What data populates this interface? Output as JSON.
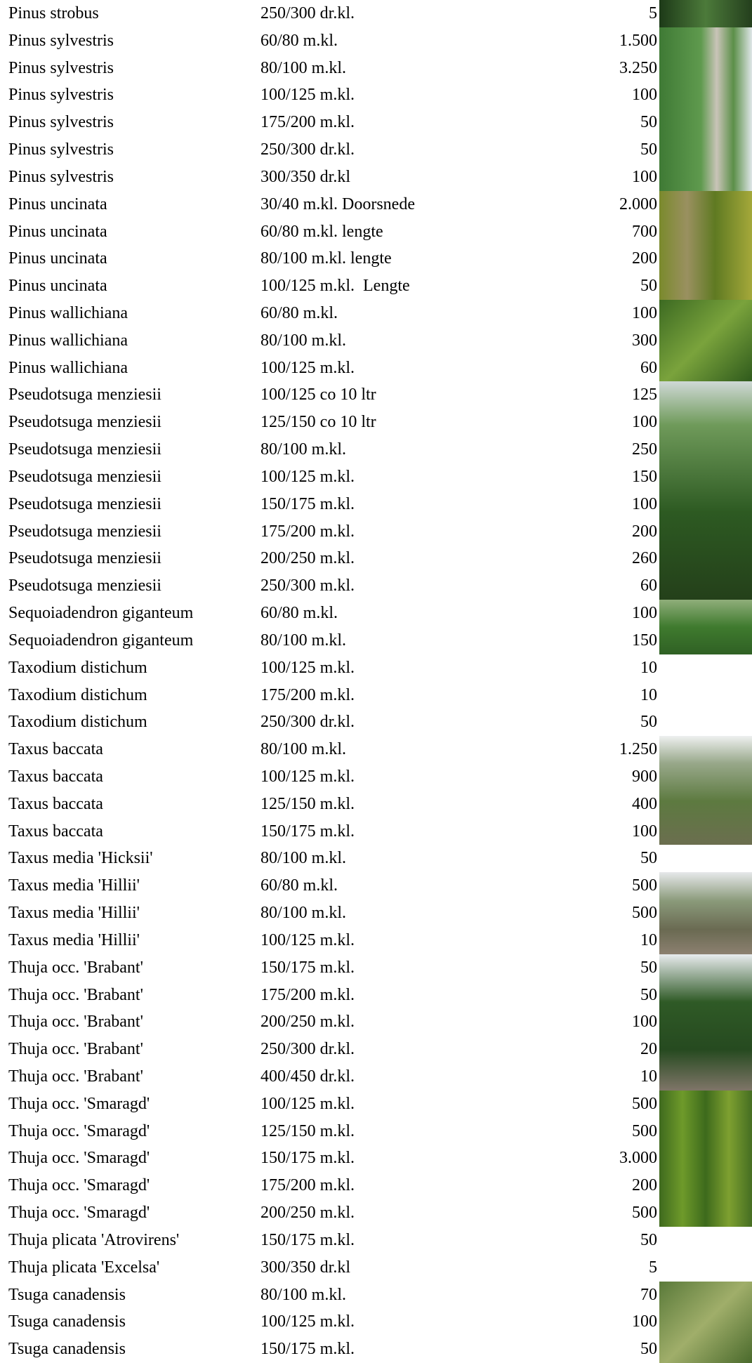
{
  "table": {
    "rows": [
      [
        "Pinus strobus",
        "250/300 dr.kl.",
        "5"
      ],
      [
        "Pinus sylvestris",
        "60/80 m.kl.",
        "1.500"
      ],
      [
        "Pinus sylvestris",
        "80/100 m.kl.",
        "3.250"
      ],
      [
        "Pinus sylvestris",
        "100/125 m.kl.",
        "100"
      ],
      [
        "Pinus sylvestris",
        "175/200 m.kl.",
        "50"
      ],
      [
        "Pinus sylvestris",
        "250/300 dr.kl.",
        "50"
      ],
      [
        "Pinus sylvestris",
        "300/350 dr.kl",
        "100"
      ],
      [
        "Pinus uncinata",
        "30/40 m.kl. Doorsnede",
        "2.000"
      ],
      [
        "Pinus uncinata",
        "60/80 m.kl. lengte",
        "700"
      ],
      [
        "Pinus uncinata",
        "80/100 m.kl. lengte",
        "200"
      ],
      [
        "Pinus uncinata",
        "100/125 m.kl.  Lengte",
        "50"
      ],
      [
        "Pinus wallichiana",
        "60/80 m.kl.",
        "100"
      ],
      [
        "Pinus wallichiana",
        "80/100 m.kl.",
        "300"
      ],
      [
        "Pinus wallichiana",
        "100/125 m.kl.",
        "60"
      ],
      [
        "Pseudotsuga menziesii",
        "100/125 co 10 ltr",
        "125"
      ],
      [
        "Pseudotsuga menziesii",
        "125/150 co 10 ltr",
        "100"
      ],
      [
        "Pseudotsuga menziesii",
        "80/100 m.kl.",
        "250"
      ],
      [
        "Pseudotsuga menziesii",
        "100/125 m.kl.",
        "150"
      ],
      [
        "Pseudotsuga menziesii",
        "150/175 m.kl.",
        "100"
      ],
      [
        "Pseudotsuga menziesii",
        "175/200 m.kl.",
        "200"
      ],
      [
        "Pseudotsuga menziesii",
        "200/250 m.kl.",
        "260"
      ],
      [
        "Pseudotsuga menziesii",
        "250/300 m.kl.",
        "60"
      ],
      [
        "Sequoiadendron giganteum",
        "60/80 m.kl.",
        "100"
      ],
      [
        "Sequoiadendron giganteum",
        "80/100 m.kl.",
        "150"
      ],
      [
        "Taxodium distichum",
        "100/125 m.kl.",
        "10"
      ],
      [
        "Taxodium distichum",
        "175/200 m.kl.",
        "10"
      ],
      [
        "Taxodium distichum",
        "250/300 dr.kl.",
        "50"
      ],
      [
        "Taxus baccata",
        "80/100 m.kl.",
        "1.250"
      ],
      [
        "Taxus baccata",
        "100/125 m.kl.",
        "900"
      ],
      [
        "Taxus baccata",
        "125/150 m.kl.",
        "400"
      ],
      [
        "Taxus baccata",
        "150/175 m.kl.",
        "100"
      ],
      [
        "Taxus media 'Hicksii'",
        "80/100 m.kl.",
        "50"
      ],
      [
        "Taxus media 'Hillii'",
        "60/80 m.kl.",
        "500"
      ],
      [
        "Taxus media 'Hillii'",
        "80/100 m.kl.",
        "500"
      ],
      [
        "Taxus media 'Hillii'",
        "100/125 m.kl.",
        "10"
      ],
      [
        "Thuja occ. 'Brabant'",
        "150/175 m.kl.",
        "50"
      ],
      [
        "Thuja occ. 'Brabant'",
        "175/200 m.kl.",
        "50"
      ],
      [
        "Thuja occ. 'Brabant'",
        "200/250 m.kl.",
        "100"
      ],
      [
        "Thuja occ. 'Brabant'",
        "250/300 dr.kl.",
        "20"
      ],
      [
        "Thuja occ. 'Brabant'",
        "400/450 dr.kl.",
        "10"
      ],
      [
        "Thuja occ. 'Smaragd'",
        "100/125 m.kl.",
        "500"
      ],
      [
        "Thuja occ. 'Smaragd'",
        "125/150 m.kl.",
        "500"
      ],
      [
        "Thuja occ. 'Smaragd'",
        "150/175 m.kl.",
        "3.000"
      ],
      [
        "Thuja occ. 'Smaragd'",
        "175/200 m.kl.",
        "200"
      ],
      [
        "Thuja occ. 'Smaragd'",
        "200/250 m.kl.",
        "500"
      ],
      [
        "Thuja plicata 'Atrovirens'",
        "150/175 m.kl.",
        "50"
      ],
      [
        "Thuja plicata 'Excelsa'",
        "300/350 dr.kl",
        "5"
      ],
      [
        "Tsuga canadensis",
        "80/100 m.kl.",
        "70"
      ],
      [
        "Tsuga canadensis",
        "100/125 m.kl.",
        "100"
      ],
      [
        "Tsuga canadensis",
        "150/175 m.kl.",
        "50"
      ]
    ]
  }
}
